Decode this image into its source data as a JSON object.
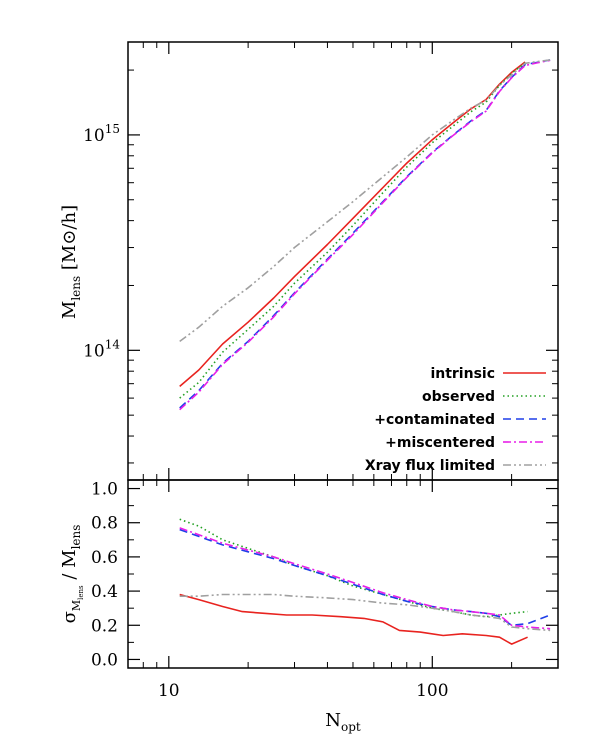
{
  "chart_data": [
    {
      "type": "line",
      "panel": "top",
      "xscale": "log",
      "yscale": "log",
      "xlim": [
        7,
        300
      ],
      "ylim": [
        25000000000000,
        2700000000000000
      ],
      "xlabel": "",
      "ylabel": {
        "main": "M",
        "sub": "lens",
        "unit": " [M",
        "sun": "⊙",
        "unit_end": "/h]"
      },
      "yticks": [
        {
          "value": 100000000000000,
          "base": "10",
          "exp": "14"
        },
        {
          "value": 1000000000000000,
          "base": "10",
          "exp": "15"
        }
      ],
      "legend_position": "bottom-right",
      "series": [
        {
          "name": "intrinsic",
          "color": "#e8231f",
          "dash": "solid",
          "x": [
            11,
            13,
            16,
            20,
            25,
            30,
            40,
            50,
            65,
            80,
            100,
            120,
            140,
            160,
            180,
            200,
            225
          ],
          "y": [
            68000000000000,
            81000000000000,
            107000000000000,
            135000000000000,
            175000000000000,
            220000000000000,
            310000000000000,
            410000000000000,
            570000000000000,
            740000000000000,
            950000000000000,
            1140000000000000,
            1320000000000000,
            1460000000000000,
            1720000000000000,
            1950000000000000,
            2180000000000000
          ]
        },
        {
          "name": "observed",
          "color": "#22a022",
          "dash": "dotted",
          "x": [
            11,
            13,
            16,
            20,
            25,
            30,
            40,
            50,
            65,
            80,
            100,
            120,
            140,
            160,
            180,
            200,
            225
          ],
          "y": [
            60000000000000,
            71000000000000,
            98000000000000,
            125000000000000,
            160000000000000,
            205000000000000,
            285000000000000,
            380000000000000,
            540000000000000,
            710000000000000,
            920000000000000,
            1100000000000000,
            1280000000000000,
            1420000000000000,
            1700000000000000,
            1930000000000000,
            2160000000000000
          ]
        },
        {
          "name": "+contaminated",
          "color": "#1f3fe8",
          "dash": "dashed",
          "x": [
            11,
            13,
            16,
            20,
            25,
            30,
            40,
            50,
            65,
            80,
            100,
            120,
            140,
            160,
            180,
            200,
            225,
            250,
            280
          ],
          "y": [
            54000000000000,
            65000000000000,
            87000000000000,
            110000000000000,
            145000000000000,
            185000000000000,
            265000000000000,
            350000000000000,
            490000000000000,
            640000000000000,
            830000000000000,
            1000000000000000,
            1160000000000000,
            1300000000000000,
            1600000000000000,
            1850000000000000,
            2120000000000000,
            2170000000000000,
            2230000000000000
          ]
        },
        {
          "name": "+miscentered",
          "color": "#e81fe8",
          "dash": "dashdot",
          "x": [
            11,
            13,
            16,
            20,
            25,
            30,
            40,
            50,
            65,
            80,
            100,
            120,
            140,
            160,
            180,
            200,
            225,
            250,
            280
          ],
          "y": [
            53000000000000,
            64000000000000,
            86000000000000,
            109000000000000,
            143000000000000,
            183000000000000,
            262000000000000,
            345000000000000,
            485000000000000,
            635000000000000,
            825000000000000,
            995000000000000,
            1150000000000000,
            1290000000000000,
            1590000000000000,
            1840000000000000,
            2100000000000000,
            2160000000000000,
            2220000000000000
          ]
        },
        {
          "name": "Xray flux limited",
          "color": "#a0a0a0",
          "dash": "dashdotdot",
          "x": [
            11,
            13,
            16,
            20,
            25,
            30,
            40,
            50,
            65,
            80,
            100,
            120,
            140,
            160,
            180,
            200,
            225,
            250,
            280
          ],
          "y": [
            110000000000000,
            128000000000000,
            160000000000000,
            195000000000000,
            245000000000000,
            300000000000000,
            395000000000000,
            490000000000000,
            640000000000000,
            790000000000000,
            1000000000000000,
            1170000000000000,
            1330000000000000,
            1450000000000000,
            1700000000000000,
            1900000000000000,
            2150000000000000,
            2190000000000000,
            2230000000000000
          ]
        }
      ]
    },
    {
      "type": "line",
      "panel": "bottom",
      "xscale": "log",
      "xlim": [
        7,
        300
      ],
      "ylim": [
        -0.05,
        1.05
      ],
      "xlabel": {
        "main": "N",
        "sub": "opt"
      },
      "ylabel": {
        "sigma": "σ",
        "sub": "M",
        "subsub": "lens",
        "mid": " / M",
        "sub2": "lens"
      },
      "yticks": [
        "0.0",
        "0.2",
        "0.4",
        "0.6",
        "0.8",
        "1.0"
      ],
      "xticks": [
        "10",
        "100"
      ],
      "series": [
        {
          "name": "intrinsic",
          "color": "#e8231f",
          "dash": "solid",
          "x": [
            11,
            13,
            16,
            19,
            23,
            28,
            35,
            45,
            55,
            65,
            75,
            90,
            110,
            130,
            160,
            180,
            200,
            230
          ],
          "y": [
            0.38,
            0.35,
            0.31,
            0.28,
            0.27,
            0.26,
            0.26,
            0.25,
            0.24,
            0.22,
            0.17,
            0.16,
            0.14,
            0.15,
            0.14,
            0.13,
            0.09,
            0.13
          ]
        },
        {
          "name": "observed",
          "color": "#22a022",
          "dash": "dotted",
          "x": [
            11,
            13,
            16,
            20,
            25,
            30,
            40,
            50,
            65,
            80,
            100,
            120,
            140,
            160,
            180,
            200,
            230
          ],
          "y": [
            0.82,
            0.78,
            0.7,
            0.65,
            0.6,
            0.55,
            0.49,
            0.43,
            0.38,
            0.34,
            0.3,
            0.28,
            0.26,
            0.25,
            0.26,
            0.27,
            0.28
          ]
        },
        {
          "name": "+contaminated",
          "color": "#1f3fe8",
          "dash": "dashed",
          "x": [
            11,
            13,
            16,
            20,
            25,
            30,
            40,
            50,
            65,
            80,
            100,
            120,
            140,
            160,
            180,
            200,
            230,
            280
          ],
          "y": [
            0.76,
            0.72,
            0.67,
            0.63,
            0.59,
            0.55,
            0.49,
            0.44,
            0.38,
            0.34,
            0.31,
            0.29,
            0.28,
            0.27,
            0.25,
            0.2,
            0.21,
            0.26
          ]
        },
        {
          "name": "+miscentered",
          "color": "#e81fe8",
          "dash": "dashdot",
          "x": [
            11,
            13,
            16,
            20,
            25,
            30,
            40,
            50,
            65,
            80,
            100,
            120,
            140,
            160,
            180,
            200,
            230,
            280
          ],
          "y": [
            0.77,
            0.73,
            0.68,
            0.64,
            0.6,
            0.56,
            0.5,
            0.45,
            0.39,
            0.35,
            0.31,
            0.29,
            0.28,
            0.27,
            0.26,
            0.2,
            0.19,
            0.18
          ]
        },
        {
          "name": "Xray flux limited",
          "color": "#a0a0a0",
          "dash": "dashdotdot",
          "x": [
            11,
            13,
            16,
            20,
            25,
            30,
            40,
            50,
            65,
            80,
            100,
            120,
            140,
            160,
            180,
            200,
            230,
            280
          ],
          "y": [
            0.37,
            0.37,
            0.38,
            0.38,
            0.38,
            0.37,
            0.36,
            0.35,
            0.33,
            0.32,
            0.3,
            0.28,
            0.26,
            0.25,
            0.24,
            0.19,
            0.18,
            0.17
          ]
        }
      ]
    }
  ]
}
